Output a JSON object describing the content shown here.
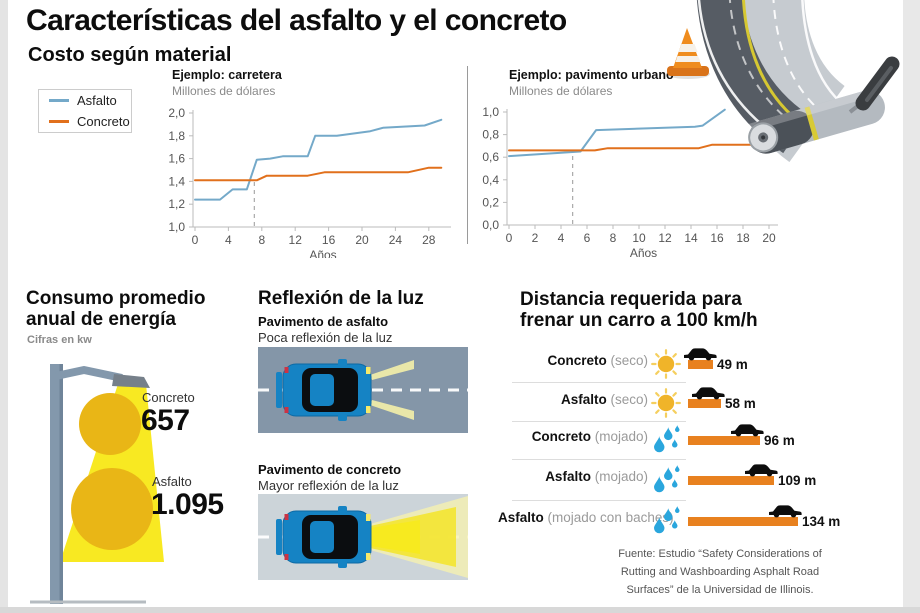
{
  "page": {
    "title": "Características del asfalto y el concreto"
  },
  "cost": {
    "title": "Costo según material",
    "legend": [
      {
        "label": "Asfalto",
        "color": "#74a9c9"
      },
      {
        "label": "Concreto",
        "color": "#e1701c"
      }
    ]
  },
  "chart_data": [
    {
      "type": "line",
      "title": "Ejemplo: carretera",
      "subtitle": "Millones de dólares",
      "xlabel": "Años",
      "xlim": [
        0,
        30
      ],
      "ylim": [
        1.0,
        2.0
      ],
      "xticks": [
        0,
        4,
        8,
        12,
        16,
        20,
        24,
        28
      ],
      "yticks": [
        1.0,
        1.2,
        1.4,
        1.6,
        1.8,
        2.0
      ],
      "ytick_labels": [
        "1,0",
        "1,2",
        "1,4",
        "1,6",
        "1,8",
        "2,0"
      ],
      "grid": false,
      "legend_position": "outside-left",
      "break_even_x": 7.1,
      "series": [
        {
          "name": "Asfalto",
          "color": "#74a9c9",
          "points": [
            [
              0,
              1.24
            ],
            [
              3,
              1.24
            ],
            [
              4.5,
              1.33
            ],
            [
              6.2,
              1.33
            ],
            [
              7.4,
              1.59
            ],
            [
              9,
              1.6
            ],
            [
              10.5,
              1.62
            ],
            [
              13.5,
              1.62
            ],
            [
              14.4,
              1.8
            ],
            [
              17,
              1.8
            ],
            [
              21,
              1.84
            ],
            [
              22.5,
              1.87
            ],
            [
              27.5,
              1.89
            ],
            [
              29.5,
              1.94
            ]
          ]
        },
        {
          "name": "Concreto",
          "color": "#e1701c",
          "points": [
            [
              0,
              1.41
            ],
            [
              7.4,
              1.41
            ],
            [
              8.6,
              1.45
            ],
            [
              13.5,
              1.45
            ],
            [
              15.5,
              1.48
            ],
            [
              25.5,
              1.48
            ],
            [
              28,
              1.52
            ],
            [
              29.5,
              1.52
            ]
          ]
        }
      ]
    },
    {
      "type": "line",
      "title": "Ejemplo: pavimento urbano",
      "subtitle": "Millones de dólares",
      "xlabel": "Años",
      "xlim": [
        0,
        20.5
      ],
      "ylim": [
        0.0,
        1.0
      ],
      "xticks": [
        0,
        2,
        4,
        6,
        8,
        10,
        12,
        14,
        16,
        18,
        20
      ],
      "yticks": [
        0.0,
        0.2,
        0.4,
        0.6,
        0.8,
        1.0
      ],
      "ytick_labels": [
        "0,0",
        "0,2",
        "0,4",
        "0,6",
        "0,8",
        "1,0"
      ],
      "grid": false,
      "break_even_x": 4.9,
      "series": [
        {
          "name": "Asfalto",
          "color": "#74a9c9",
          "points": [
            [
              0,
              0.61
            ],
            [
              5.5,
              0.65
            ],
            [
              6.7,
              0.84
            ],
            [
              14.3,
              0.87
            ],
            [
              14.9,
              0.88
            ],
            [
              16.6,
              1.02
            ]
          ]
        },
        {
          "name": "Concreto",
          "color": "#e1701c",
          "points": [
            [
              0,
              0.66
            ],
            [
              6.6,
              0.66
            ],
            [
              7.6,
              0.68
            ],
            [
              14.6,
              0.68
            ],
            [
              15.6,
              0.71
            ],
            [
              20.3,
              0.71
            ]
          ]
        }
      ]
    },
    {
      "type": "bar",
      "title": "Distancia requerida para frenar un carro a 100 km/h",
      "categories": [
        "Concreto (seco)",
        "Asfalto (seco)",
        "Concreto (mojado)",
        "Asfalto (mojado)",
        "Asfalto (mojado con baches)"
      ],
      "values": [
        49,
        58,
        96,
        109,
        134
      ],
      "unit": "m",
      "bar_color": "#e8811f"
    }
  ],
  "energy": {
    "title_line1": "Consumo promedio",
    "title_line2": "anual de energía",
    "subtitle": "Cifras en kw",
    "items": [
      {
        "label": "Concreto",
        "value": "657"
      },
      {
        "label": "Asfalto",
        "value": "1.095"
      }
    ]
  },
  "reflection": {
    "title": "Reflexión de la luz",
    "panels": [
      {
        "title": "Pavimento de asfalto",
        "subtitle": "Poca reflexión de la luz"
      },
      {
        "title": "Pavimento de concreto",
        "subtitle": "Mayor reflexión de la luz"
      }
    ]
  },
  "braking": {
    "title_line1": "Distancia requerida para",
    "title_line2": "frenar un carro a 100 km/h",
    "rows": [
      {
        "material": "Concreto",
        "condition": "(seco)",
        "icon": "sun",
        "value_label": "49 m"
      },
      {
        "material": "Asfalto",
        "condition": "(seco)",
        "icon": "sun",
        "value_label": "58 m"
      },
      {
        "material": "Concreto",
        "condition": "(mojado)",
        "icon": "drops",
        "value_label": "96 m"
      },
      {
        "material": "Asfalto",
        "condition": "(mojado)",
        "icon": "drops",
        "value_label": "109 m"
      },
      {
        "material": "Asfalto",
        "condition": "(mojado con baches)",
        "icon": "drops",
        "value_label": "134 m"
      }
    ]
  },
  "source": {
    "lines": [
      "Fuente: Estudio “Safety Considerations of",
      "Rutting and Washboarding Asphalt Road",
      "Surfaces” de la Universidad de Illinois."
    ]
  },
  "colors": {
    "asfalto_line": "#74a9c9",
    "concreto_line": "#e1701c",
    "bar_orange": "#e8811f",
    "sun_yellow": "#f0b429",
    "drop_blue": "#2aa6dd",
    "asphalt_bg": "#8496a8",
    "concrete_bg": "#ccd4d9",
    "beam_yellow": "#f8e922",
    "lamp_circle": "#e9b616"
  }
}
